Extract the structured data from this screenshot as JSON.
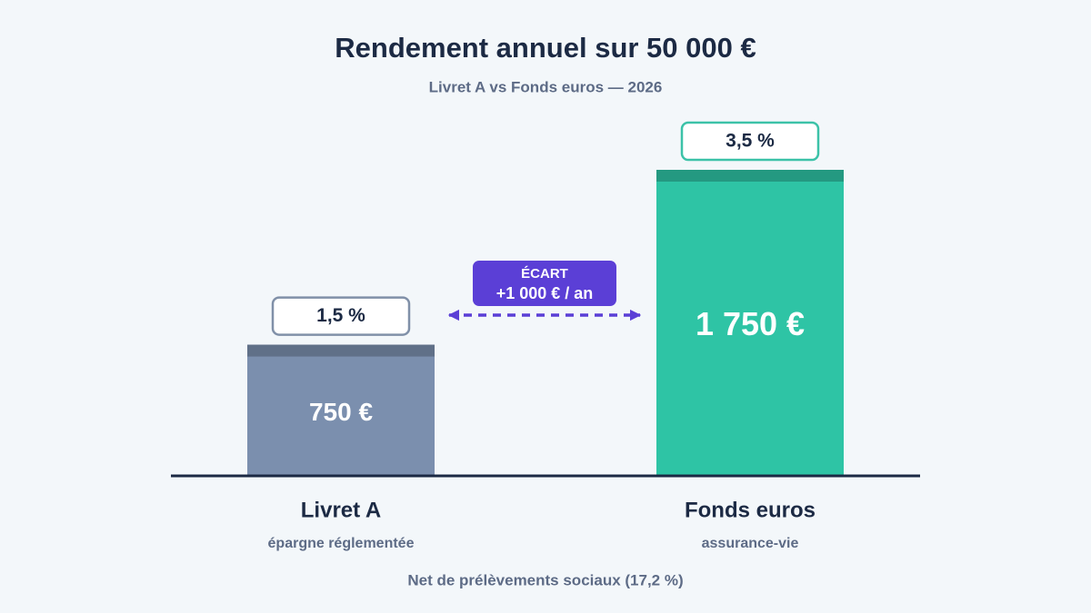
{
  "chart_data": {
    "type": "bar",
    "title": "Rendement annuel sur 50 000 €",
    "subtitle": "Livret A vs Fonds euros — 2026",
    "categories": [
      "Livret A",
      "Fonds euros"
    ],
    "category_subtitles": [
      "épargne réglementée",
      "assurance-vie"
    ],
    "values": [
      750,
      1750
    ],
    "value_labels": [
      "750 €",
      "1 750 €"
    ],
    "rate_labels": [
      "1,5 %",
      "3,5 %"
    ],
    "colors": [
      "#7b8fae",
      "#2ec4a5"
    ],
    "ylim": [
      0,
      1750
    ],
    "annotation": {
      "title": "ÉCART",
      "text": "+1 000 € / an"
    },
    "footnote": "Net de prélèvements sociaux (17,2 %)"
  }
}
